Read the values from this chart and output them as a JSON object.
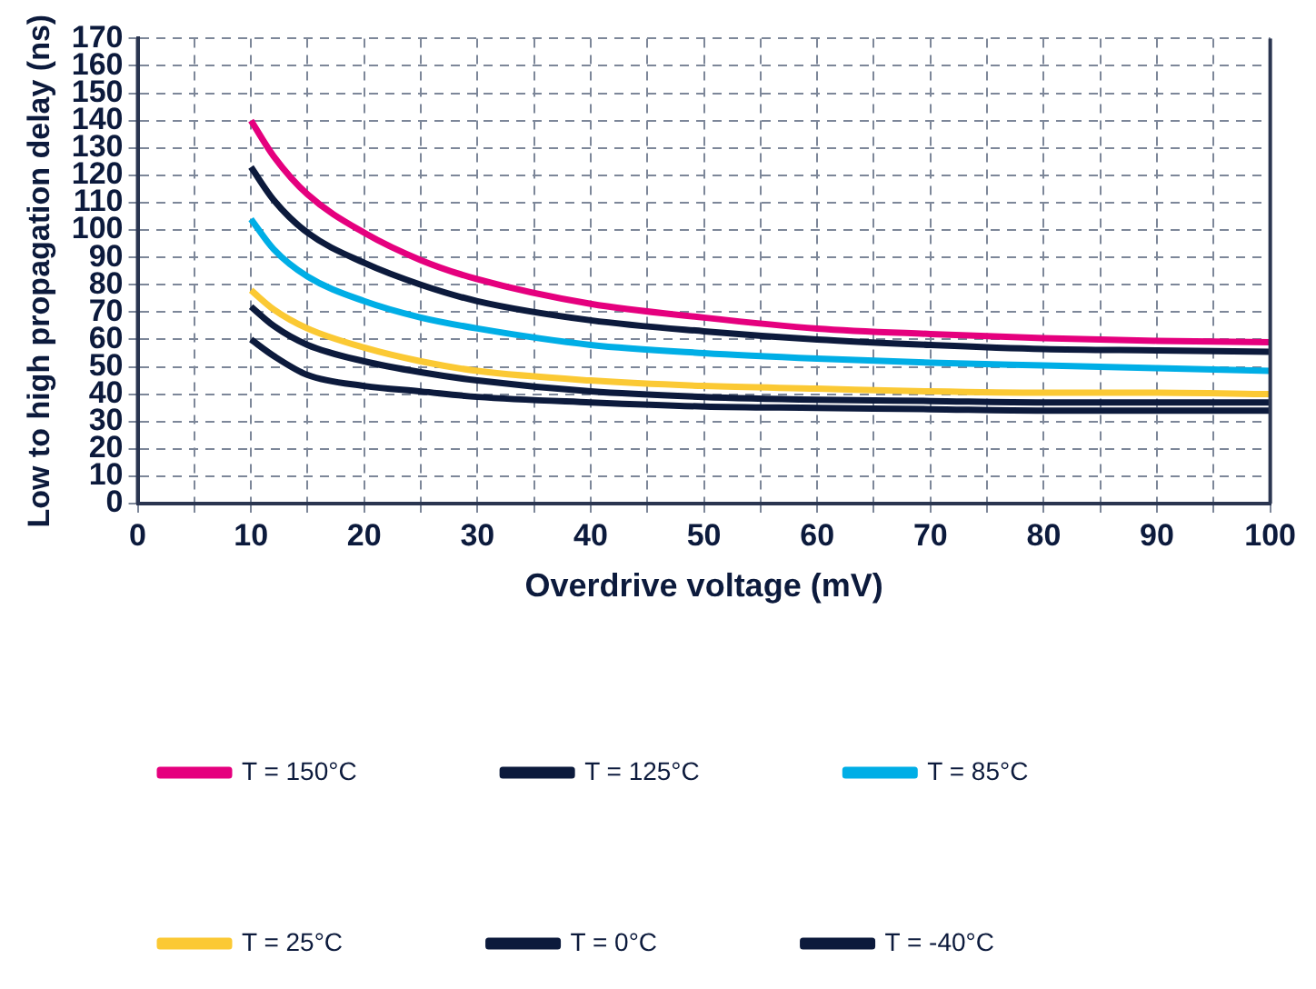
{
  "chart_data": {
    "type": "line",
    "xlabel": "Overdrive voltage (mV)",
    "ylabel": "Low to high propagation delay (ns)",
    "x": [
      10,
      12,
      15,
      20,
      25,
      30,
      40,
      50,
      60,
      70,
      80,
      90,
      100
    ],
    "series": [
      {
        "name": "T = 150°C",
        "color": "#e5007e",
        "values": [
          140,
          127,
          113,
          99,
          89,
          82,
          73,
          68,
          64,
          62,
          60.5,
          59.5,
          59
        ]
      },
      {
        "name": "T = 125°C",
        "color": "#0c1a3c",
        "values": [
          123,
          111,
          99,
          88,
          80,
          74,
          67,
          63,
          60,
          58,
          56.5,
          56,
          55.5
        ]
      },
      {
        "name": "T = 85°C",
        "color": "#00aee6",
        "values": [
          104,
          93,
          83,
          74,
          68,
          64,
          58,
          55,
          53,
          51.5,
          50.5,
          49.5,
          48.5
        ]
      },
      {
        "name": "T = 25°C",
        "color": "#fbc934",
        "values": [
          78,
          71,
          64,
          57,
          52,
          48.5,
          45,
          43,
          42,
          41,
          40.5,
          40.5,
          40
        ]
      },
      {
        "name": "T = 0°C",
        "color": "#0c1a3c",
        "values": [
          72,
          65,
          58,
          52,
          48,
          45,
          41,
          39,
          38,
          37.5,
          37,
          37,
          37
        ]
      },
      {
        "name": "T = -40°C",
        "color": "#0c1a3c",
        "values": [
          60,
          54,
          47,
          43,
          41,
          39,
          37,
          35.5,
          35,
          34.5,
          34,
          34,
          34
        ]
      }
    ],
    "xlim": [
      0,
      100
    ],
    "xticks": [
      0,
      {
        "value": 5,
        "label": null
      },
      10,
      {
        "value": 15,
        "label": null
      },
      20,
      {
        "value": 25,
        "label": null
      },
      30,
      {
        "value": 35,
        "label": null
      },
      40,
      {
        "value": 45,
        "label": null
      },
      50,
      {
        "value": 55,
        "label": null
      },
      60,
      {
        "value": 65,
        "label": null
      },
      70,
      {
        "value": 75,
        "label": null
      },
      80,
      {
        "value": 85,
        "label": null
      },
      90,
      {
        "value": 95,
        "label": null
      },
      100
    ],
    "ylim": [
      0,
      170
    ],
    "yticks": [
      0,
      10,
      20,
      30,
      40,
      50,
      60,
      70,
      80,
      90,
      100,
      110,
      120,
      130,
      140,
      150,
      160,
      170
    ],
    "grid": true,
    "legend": "bottom",
    "marker": "none",
    "line_style": "solid"
  }
}
